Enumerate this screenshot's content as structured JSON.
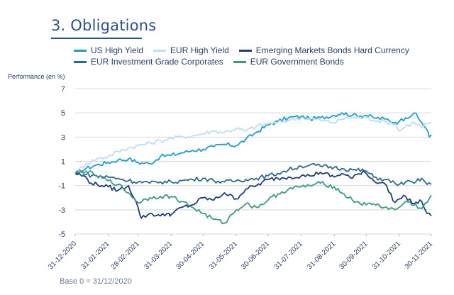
{
  "page": {
    "title": "3. Obligations",
    "footnote": "Base 0 = 31/12/2020"
  },
  "chart_data": {
    "type": "line",
    "ylabel": "Performance (en %)",
    "xlabel": "",
    "ylim": [
      -5,
      7
    ],
    "yticks": [
      -5,
      -3,
      -1,
      1,
      3,
      5,
      7
    ],
    "xlim": [
      0,
      334
    ],
    "xtick_labels": [
      "31-12-2020",
      "31-01-2021",
      "28-02-2021",
      "31-03-2021",
      "30-04-2021",
      "31-05-2021",
      "30-06-2021",
      "31-07-2021",
      "31-08-2021",
      "30-09-2021",
      "31-10-2021",
      "30-11-2021"
    ],
    "xtick_days": [
      0,
      31,
      59,
      90,
      120,
      151,
      181,
      212,
      243,
      273,
      304,
      334
    ],
    "grid": true,
    "legend_rows": [
      [
        0,
        1,
        2
      ],
      [
        3,
        4
      ]
    ],
    "series": [
      {
        "name": "US High Yield",
        "color": "#1e9bd0",
        "x": [
          0,
          10,
          20,
          31,
          40,
          50,
          59,
          70,
          80,
          90,
          100,
          110,
          120,
          130,
          140,
          151,
          160,
          170,
          181,
          190,
          200,
          212,
          220,
          230,
          243,
          250,
          260,
          273,
          280,
          290,
          300,
          304,
          310,
          318,
          325,
          330,
          332,
          334
        ],
        "y": [
          0,
          0.4,
          0.7,
          0.9,
          1.1,
          1.2,
          0.9,
          0.8,
          1.4,
          1.5,
          1.7,
          1.9,
          2.0,
          2.2,
          2.4,
          2.3,
          2.8,
          3.4,
          4.0,
          4.3,
          4.6,
          4.7,
          4.5,
          4.6,
          4.8,
          5.0,
          4.8,
          4.8,
          4.6,
          4.5,
          4.2,
          4.3,
          4.6,
          5.0,
          4.2,
          3.6,
          3.0,
          3.2
        ]
      },
      {
        "name": "EUR High Yield",
        "color": "#bfdcf2",
        "x": [
          0,
          10,
          20,
          31,
          40,
          50,
          59,
          70,
          80,
          90,
          100,
          110,
          120,
          130,
          140,
          151,
          160,
          170,
          181,
          190,
          200,
          212,
          220,
          230,
          243,
          250,
          260,
          273,
          280,
          290,
          300,
          304,
          310,
          318,
          325,
          330,
          334
        ],
        "y": [
          0,
          0.8,
          1.2,
          1.4,
          1.8,
          2.1,
          2.3,
          2.5,
          2.7,
          2.9,
          3.0,
          3.1,
          3.3,
          3.5,
          3.4,
          3.7,
          3.5,
          3.9,
          4.1,
          4.2,
          4.4,
          4.6,
          4.5,
          4.4,
          4.2,
          4.5,
          4.6,
          4.6,
          4.4,
          4.3,
          4.1,
          3.5,
          3.9,
          4.2,
          3.8,
          4.1,
          4.2
        ]
      },
      {
        "name": "Emerging Markets Bonds Hard Currency",
        "color": "#1f3d7a",
        "x": [
          0,
          8,
          15,
          25,
          31,
          40,
          50,
          55,
          59,
          62,
          70,
          80,
          88,
          90,
          100,
          110,
          120,
          130,
          140,
          151,
          160,
          170,
          181,
          190,
          200,
          212,
          220,
          230,
          243,
          250,
          260,
          270,
          273,
          280,
          290,
          300,
          304,
          310,
          318,
          325,
          330,
          334
        ],
        "y": [
          0,
          -0.2,
          -0.8,
          -1.0,
          -1.1,
          -1.4,
          -1.0,
          -2.0,
          -2.8,
          -3.7,
          -3.3,
          -3.5,
          -3.3,
          -3.4,
          -2.8,
          -2.6,
          -2.0,
          -2.2,
          -1.6,
          -2.1,
          -1.3,
          -1.0,
          -0.5,
          -0.4,
          -0.3,
          -0.2,
          -0.2,
          0.1,
          -0.3,
          0.0,
          -0.4,
          0.2,
          0.0,
          -0.6,
          -0.8,
          -2.4,
          -2.1,
          -1.9,
          -2.5,
          -2.3,
          -3.3,
          -3.5
        ]
      },
      {
        "name": "EUR Investment Grade Corporates",
        "color": "#2c6a8a",
        "x": [
          0,
          10,
          20,
          31,
          40,
          50,
          59,
          70,
          80,
          90,
          100,
          110,
          120,
          130,
          140,
          151,
          160,
          170,
          181,
          190,
          200,
          212,
          220,
          230,
          243,
          250,
          260,
          273,
          280,
          290,
          300,
          304,
          310,
          318,
          325,
          330,
          334
        ],
        "y": [
          0,
          -0.1,
          -0.2,
          -0.3,
          -0.4,
          -0.6,
          -0.7,
          -0.8,
          -0.7,
          -0.7,
          -0.6,
          -0.5,
          -0.4,
          -0.6,
          -0.7,
          -0.6,
          -0.5,
          -0.4,
          -0.2,
          0.0,
          0.3,
          0.6,
          0.7,
          0.6,
          0.5,
          0.4,
          0.3,
          0.2,
          -0.3,
          -0.5,
          -0.8,
          -0.9,
          -0.7,
          -0.8,
          -0.4,
          -0.9,
          -0.9
        ]
      },
      {
        "name": "EUR Government Bonds",
        "color": "#3a9a7c",
        "x": [
          0,
          10,
          20,
          31,
          40,
          50,
          59,
          70,
          80,
          90,
          100,
          110,
          120,
          130,
          140,
          151,
          160,
          170,
          181,
          190,
          200,
          212,
          220,
          230,
          243,
          250,
          260,
          273,
          280,
          290,
          300,
          304,
          310,
          318,
          325,
          330,
          334
        ],
        "y": [
          0,
          0.2,
          -0.2,
          -0.6,
          -0.9,
          -1.6,
          -2.4,
          -2.0,
          -1.9,
          -1.9,
          -2.3,
          -2.8,
          -3.3,
          -3.8,
          -4.1,
          -3.0,
          -2.5,
          -2.8,
          -2.2,
          -1.7,
          -1.3,
          -1.1,
          -1.0,
          -0.8,
          -1.1,
          -1.6,
          -2.2,
          -2.6,
          -2.5,
          -2.8,
          -3.0,
          -2.8,
          -2.3,
          -2.6,
          -2.9,
          -2.4,
          -1.8
        ]
      }
    ]
  }
}
